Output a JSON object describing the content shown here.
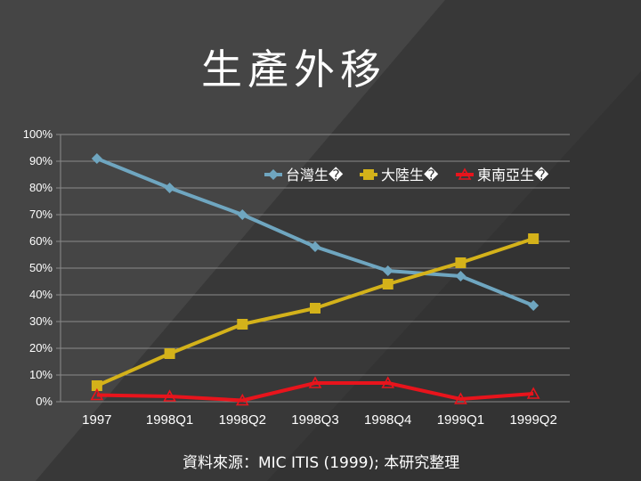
{
  "slide": {
    "title": "生產外移",
    "source": "資料來源：MIC ITIS (1999); 本研究整理"
  },
  "chart_data": {
    "type": "line",
    "categories": [
      "1997",
      "1998Q1",
      "1998Q2",
      "1998Q3",
      "1998Q4",
      "1999Q1",
      "1999Q2"
    ],
    "ylim": [
      0,
      100
    ],
    "yticks": [
      "0%",
      "10%",
      "20%",
      "30%",
      "40%",
      "50%",
      "60%",
      "70%",
      "80%",
      "90%",
      "100%"
    ],
    "grid": true,
    "legend": "top-right",
    "series": [
      {
        "name": "台灣生�",
        "color": "#6fa6c0",
        "marker": "diamond",
        "values": [
          91,
          80,
          70,
          58,
          49,
          47,
          36
        ]
      },
      {
        "name": "大陸生�",
        "color": "#d4b21a",
        "marker": "square",
        "values": [
          6,
          18,
          29,
          35,
          44,
          52,
          61
        ]
      },
      {
        "name": "東南亞生�",
        "color": "#e8141c",
        "marker": "triangle",
        "values": [
          2.5,
          2,
          0.5,
          7,
          7,
          1,
          3
        ]
      }
    ]
  }
}
